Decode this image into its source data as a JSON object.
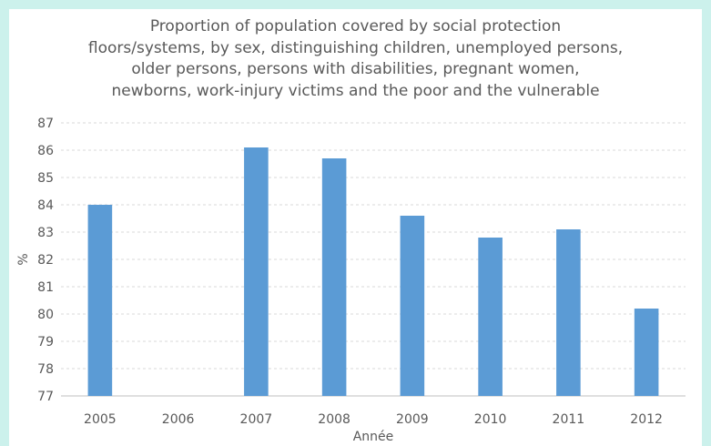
{
  "chart_data": {
    "type": "bar",
    "title": "Proportion of population covered by social protection\nfloors/systems, by sex, distinguishing children, unemployed persons,\nolder persons, persons with disabilities, pregnant women,\nnewborns, work-injury victims and the poor and the vulnerable",
    "xlabel": "Année",
    "ylabel": "%",
    "categories": [
      "2005",
      "2006",
      "2007",
      "2008",
      "2009",
      "2010",
      "2011",
      "2012"
    ],
    "values": [
      84.0,
      null,
      86.1,
      85.7,
      83.6,
      82.8,
      83.1,
      80.2
    ],
    "ylim": [
      77,
      87
    ],
    "yticks": [
      "77",
      "78",
      "79",
      "80",
      "81",
      "82",
      "83",
      "84",
      "85",
      "86",
      "87"
    ],
    "grid": true,
    "bar_color": "#5b9bd5",
    "gridline_color": "#d9d9d9"
  }
}
